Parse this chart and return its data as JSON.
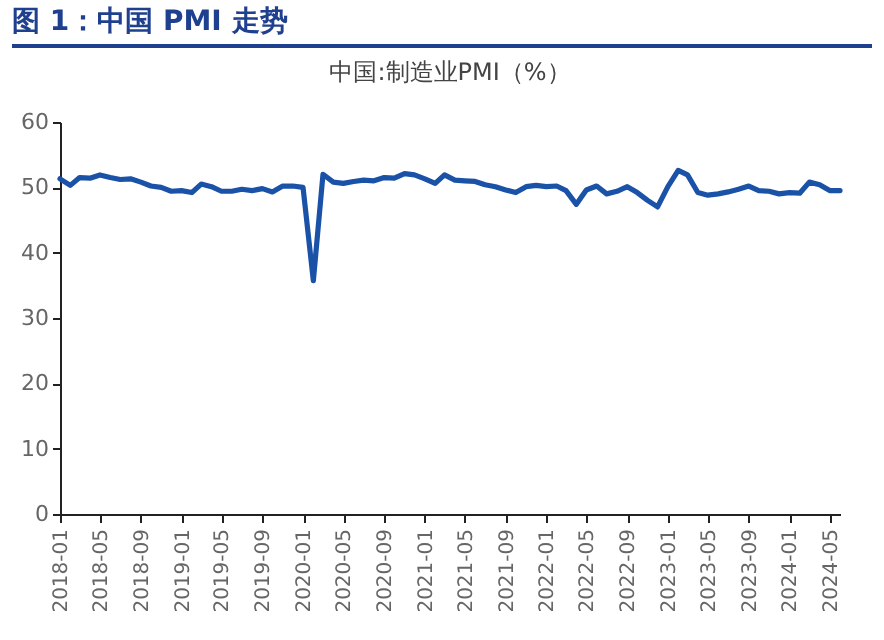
{
  "chart_data": {
    "type": "line",
    "title": "图 1：中国 PMI 走势",
    "subtitle": "中国:制造业PMI（%）",
    "x": [
      "2018-01",
      "2018-02",
      "2018-03",
      "2018-04",
      "2018-05",
      "2018-06",
      "2018-07",
      "2018-08",
      "2018-09",
      "2018-10",
      "2018-11",
      "2018-12",
      "2019-01",
      "2019-02",
      "2019-03",
      "2019-04",
      "2019-05",
      "2019-06",
      "2019-07",
      "2019-08",
      "2019-09",
      "2019-10",
      "2019-11",
      "2019-12",
      "2020-01",
      "2020-02",
      "2020-03",
      "2020-04",
      "2020-05",
      "2020-06",
      "2020-07",
      "2020-08",
      "2020-09",
      "2020-10",
      "2020-11",
      "2020-12",
      "2021-01",
      "2021-02",
      "2021-03",
      "2021-04",
      "2021-05",
      "2021-06",
      "2021-07",
      "2021-08",
      "2021-09",
      "2021-10",
      "2021-11",
      "2021-12",
      "2022-01",
      "2022-02",
      "2022-03",
      "2022-04",
      "2022-05",
      "2022-06",
      "2022-07",
      "2022-08",
      "2022-09",
      "2022-10",
      "2022-11",
      "2022-12",
      "2023-01",
      "2023-02",
      "2023-03",
      "2023-04",
      "2023-05",
      "2023-06",
      "2023-07",
      "2023-08",
      "2023-09",
      "2023-10",
      "2023-11",
      "2023-12",
      "2024-01",
      "2024-02",
      "2024-03",
      "2024-04",
      "2024-05",
      "2024-06"
    ],
    "series": [
      {
        "color": "#1a52a8",
        "values": [
          51.3,
          50.3,
          51.5,
          51.4,
          51.9,
          51.5,
          51.2,
          51.3,
          50.8,
          50.2,
          50.0,
          49.4,
          49.5,
          49.2,
          50.5,
          50.1,
          49.4,
          49.4,
          49.7,
          49.5,
          49.8,
          49.3,
          50.2,
          50.2,
          50.0,
          35.7,
          52.0,
          50.8,
          50.6,
          50.9,
          51.1,
          51.0,
          51.5,
          51.4,
          52.1,
          51.9,
          51.3,
          50.6,
          51.9,
          51.1,
          51.0,
          50.9,
          50.4,
          50.1,
          49.6,
          49.2,
          50.1,
          50.3,
          50.1,
          50.2,
          49.5,
          47.4,
          49.6,
          50.2,
          49.0,
          49.4,
          50.1,
          49.2,
          48.0,
          47.0,
          50.1,
          52.6,
          51.9,
          49.2,
          48.8,
          49.0,
          49.3,
          49.7,
          50.2,
          49.5,
          49.4,
          49.0,
          49.2,
          49.1,
          50.8,
          50.4,
          49.5,
          49.5
        ]
      }
    ],
    "xlim": [
      "2018-01",
      "2024-06"
    ],
    "xticks": [
      "2018-01",
      "2018-05",
      "2018-09",
      "2019-01",
      "2019-05",
      "2019-09",
      "2020-01",
      "2020-05",
      "2020-09",
      "2021-01",
      "2021-05",
      "2021-09",
      "2022-01",
      "2022-05",
      "2022-09",
      "2023-01",
      "2023-05",
      "2023-09",
      "2024-01",
      "2024-05"
    ],
    "ylim": [
      0,
      60
    ],
    "yticks": [
      0,
      10,
      20,
      30,
      40,
      50,
      60
    ],
    "grid": false
  }
}
